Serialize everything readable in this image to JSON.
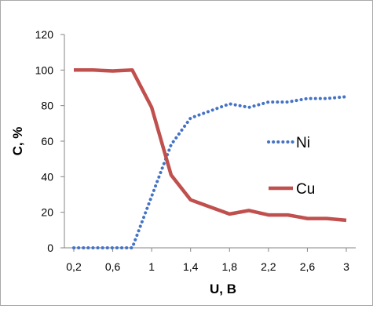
{
  "chart_data": {
    "type": "line",
    "xlabel": "U, B",
    "ylabel": "C, %",
    "xlim": [
      0.2,
      3.0
    ],
    "ylim": [
      0,
      120
    ],
    "x_ticks": [
      "0,2",
      "0,6",
      "1",
      "1,4",
      "1,8",
      "2,2",
      "2,6",
      "3"
    ],
    "y_ticks": [
      "0",
      "20",
      "40",
      "60",
      "80",
      "100",
      "120"
    ],
    "grid": false,
    "legend_position": "right",
    "x": [
      0.2,
      0.4,
      0.6,
      0.8,
      1.0,
      1.2,
      1.4,
      1.6,
      1.8,
      2.0,
      2.2,
      2.4,
      2.6,
      2.8,
      3.0
    ],
    "series": [
      {
        "name": "Ni",
        "style": "dotted",
        "color": "#4472c4",
        "values": [
          0,
          0,
          0,
          0,
          29,
          58,
          73,
          77,
          81,
          79,
          82,
          82,
          84,
          84,
          85
        ]
      },
      {
        "name": "Cu",
        "style": "solid",
        "color": "#c0504d",
        "values": [
          100,
          100,
          99.5,
          100,
          79,
          41,
          27,
          23,
          19,
          21,
          18.5,
          18.5,
          16.5,
          16.5,
          15.5
        ]
      }
    ]
  }
}
